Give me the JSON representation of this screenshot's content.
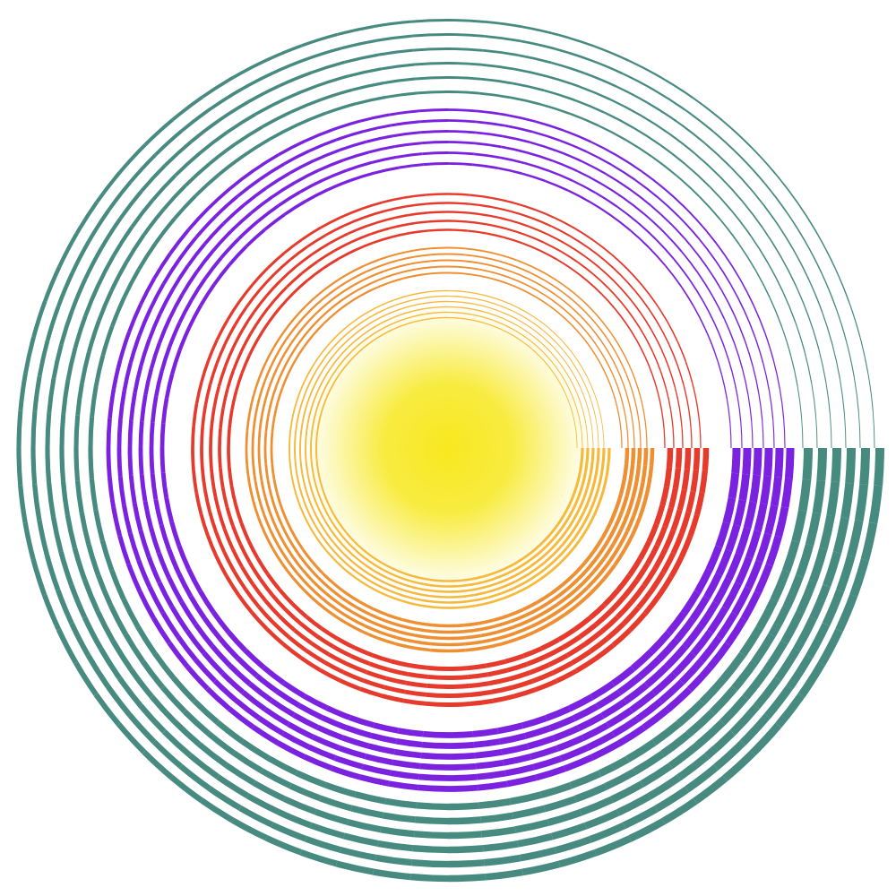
{
  "artwork": {
    "type": "concentric-spiral-rings",
    "core": {
      "color": "#f7e81f"
    },
    "ring_groups": [
      {
        "name": "gold",
        "color": "#f6b93a",
        "ring_count": 6
      },
      {
        "name": "orange",
        "color": "#ee8f32",
        "ring_count": 5
      },
      {
        "name": "red",
        "color": "#e63a2c",
        "ring_count": 5
      },
      {
        "name": "purple",
        "color": "#7a22e0",
        "ring_count": 6
      },
      {
        "name": "teal",
        "color": "#468a80",
        "ring_count": 6
      }
    ]
  }
}
